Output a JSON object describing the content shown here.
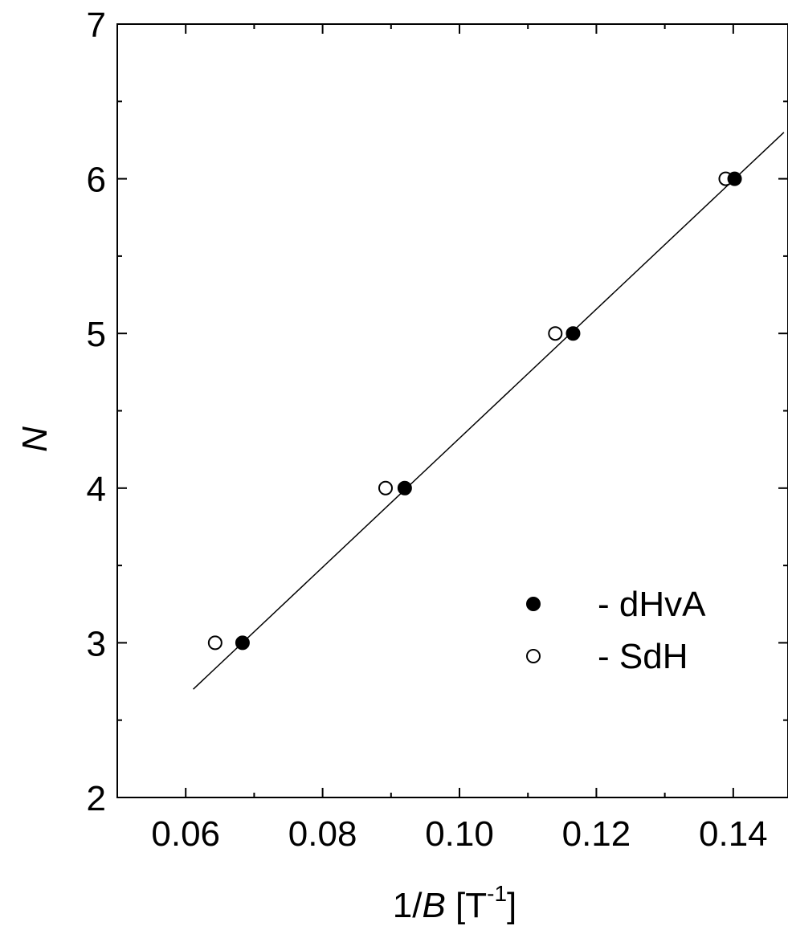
{
  "chart_data": {
    "type": "scatter",
    "xlabel": "1/B [T-1]",
    "xlabel_parts": {
      "prefix": "1/",
      "variable": "B",
      "unit_open": " [T",
      "unit_exp": "-1",
      "unit_close": "]"
    },
    "ylabel": "N",
    "xlim": [
      0.05,
      0.148
    ],
    "ylim": [
      2,
      7
    ],
    "x_ticks": [
      0.06,
      0.08,
      0.1,
      0.12,
      0.14
    ],
    "x_tick_labels": [
      "0.06",
      "0.08",
      "0.10",
      "0.12",
      "0.14"
    ],
    "y_ticks": [
      2,
      3,
      4,
      5,
      6,
      7
    ],
    "y_tick_labels": [
      "2",
      "3",
      "4",
      "5",
      "6",
      "7"
    ],
    "grid": false,
    "legend_position": "lower-right",
    "series": [
      {
        "name": "- dHvA",
        "marker": "filled-circle",
        "color": "#000000",
        "points": [
          {
            "x": 0.0683,
            "y": 3
          },
          {
            "x": 0.092,
            "y": 4
          },
          {
            "x": 0.1166,
            "y": 5
          },
          {
            "x": 0.1402,
            "y": 6
          }
        ]
      },
      {
        "name": "- SdH",
        "marker": "open-circle",
        "color": "#000000",
        "points": [
          {
            "x": 0.0643,
            "y": 3
          },
          {
            "x": 0.0892,
            "y": 4
          },
          {
            "x": 0.114,
            "y": 5
          },
          {
            "x": 0.1389,
            "y": 6
          }
        ]
      }
    ],
    "fit_line": {
      "from": {
        "x": 0.0611,
        "y": 2.7
      },
      "to": {
        "x": 0.1474,
        "y": 6.3
      }
    }
  }
}
